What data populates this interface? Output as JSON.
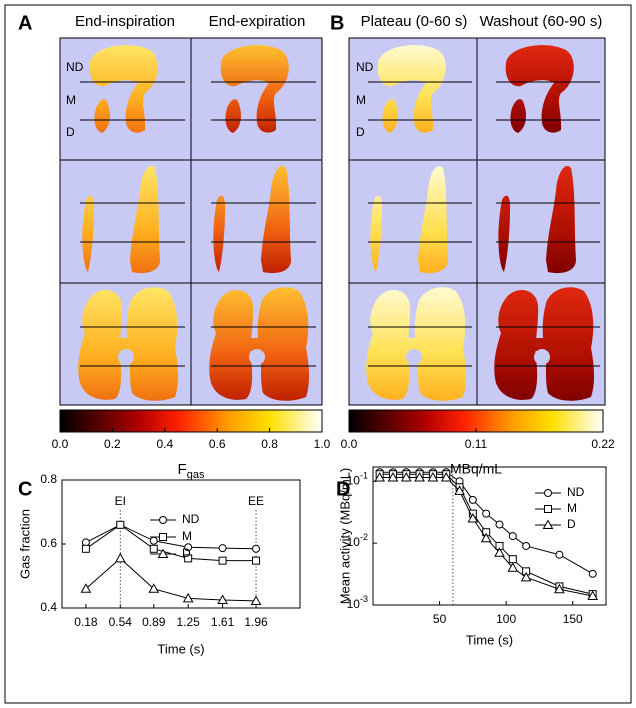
{
  "panel_a": {
    "label": "A",
    "columns": [
      "End-inspiration",
      "End-expiration"
    ],
    "regions": [
      "ND",
      "M",
      "D"
    ],
    "colorbar": {
      "clim": [
        0,
        1
      ],
      "ticks": [
        {
          "value": 0,
          "label": "0.0"
        },
        0.2,
        0.4,
        0.6,
        0.8,
        {
          "value": 1,
          "label": "1.0"
        }
      ],
      "label": "F",
      "label_sub": "gas"
    }
  },
  "panel_b": {
    "label": "B",
    "columns": [
      "Plateau (0-60 s)",
      "Washout (60-90 s)"
    ],
    "regions": [
      "ND",
      "M",
      "D"
    ],
    "colorbar": {
      "clim": [
        0,
        0.22
      ],
      "ticks": [
        {
          "value": 0,
          "label": "0.0"
        },
        0.11,
        0.22
      ],
      "label": "MBq/mL"
    }
  },
  "chart_data": [
    {
      "type": "line",
      "label": "C",
      "x_label": "Time (s)",
      "y_label": "Gas fraction",
      "x": [
        0.18,
        0.54,
        0.89,
        1.25,
        1.61,
        1.96
      ],
      "xlim": [
        -0.07,
        2.42
      ],
      "xticks": [
        0.18,
        0.54,
        0.89,
        1.25,
        1.61,
        1.96
      ],
      "ylim": [
        0.4,
        0.8
      ],
      "yticks": [
        0.4,
        0.6,
        0.8
      ],
      "legend": "upper right",
      "annotations": [
        {
          "label": "EI",
          "x": 0.54
        },
        {
          "label": "EE",
          "x": 1.96
        }
      ],
      "series": [
        {
          "name": "ND",
          "color": "#000000",
          "marker": "circle",
          "values": [
            0.605,
            0.66,
            0.61,
            0.59,
            0.587,
            0.585
          ]
        },
        {
          "name": "M",
          "color": "#000000",
          "marker": "square",
          "values": [
            0.585,
            0.66,
            0.585,
            0.555,
            0.548,
            0.548
          ]
        },
        {
          "name": "D",
          "color": "#000000",
          "marker": "triangle",
          "values": [
            0.46,
            0.555,
            0.46,
            0.43,
            0.425,
            0.422
          ]
        }
      ]
    },
    {
      "type": "line",
      "label": "D",
      "x_label": "Time (s)",
      "y_label": "Mean activity (MBq/mL)",
      "log_y": true,
      "x": [
        5,
        15,
        25,
        35,
        45,
        55,
        65,
        75,
        85,
        95,
        105,
        115,
        140,
        165
      ],
      "xlim": [
        0,
        175
      ],
      "xticks": [
        50,
        100,
        150
      ],
      "ylim": [
        0.001,
        0.17
      ],
      "yticks": [
        {
          "value": 0.001,
          "label": "10",
          "exponent": "-3"
        },
        {
          "value": 0.01,
          "label": "10",
          "exponent": "-2"
        },
        {
          "value": 0.1,
          "label": "10",
          "exponent": "-1"
        }
      ],
      "legend": "upper right",
      "vlines": [
        60
      ],
      "series": [
        {
          "name": "ND",
          "color": "#000000",
          "marker": "circle",
          "values": [
            0.14,
            0.14,
            0.14,
            0.14,
            0.14,
            0.14,
            0.1,
            0.05,
            0.03,
            0.02,
            0.013,
            0.009,
            0.0065,
            0.0032
          ]
        },
        {
          "name": "M",
          "color": "#000000",
          "marker": "square",
          "values": [
            0.13,
            0.13,
            0.13,
            0.13,
            0.13,
            0.13,
            0.08,
            0.03,
            0.015,
            0.009,
            0.0055,
            0.0035,
            0.002,
            0.0015
          ]
        },
        {
          "name": "D",
          "color": "#000000",
          "marker": "triangle",
          "values": [
            0.115,
            0.115,
            0.115,
            0.115,
            0.115,
            0.115,
            0.07,
            0.025,
            0.012,
            0.007,
            0.004,
            0.0028,
            0.0018,
            0.0014
          ]
        }
      ]
    }
  ]
}
